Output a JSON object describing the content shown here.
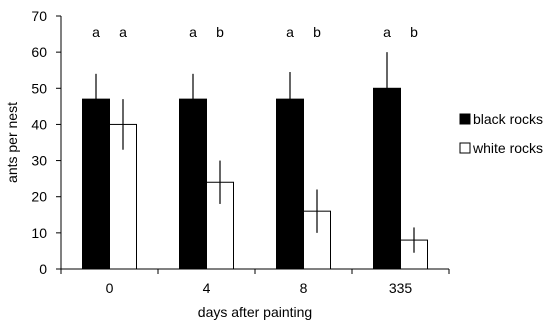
{
  "chart_data": {
    "type": "bar",
    "xlabel": "days after painting",
    "ylabel": "ants per nest",
    "ylim": [
      0,
      70
    ],
    "yticks": [
      0,
      10,
      20,
      30,
      40,
      50,
      60,
      70
    ],
    "grid": false,
    "legend_position": "right",
    "categories": [
      "0",
      "4",
      "8",
      "335"
    ],
    "series": [
      {
        "name": "black rocks",
        "color": "#000000",
        "values": [
          47,
          47,
          47,
          50
        ],
        "errors": [
          7,
          7,
          7.5,
          10
        ],
        "significance": [
          "a",
          "a",
          "a",
          "a"
        ]
      },
      {
        "name": "white rocks",
        "color": "#ffffff",
        "values": [
          40,
          24,
          16,
          8
        ],
        "errors": [
          7,
          6,
          6,
          3.5
        ],
        "significance": [
          "a",
          "b",
          "b",
          "b"
        ]
      }
    ]
  }
}
